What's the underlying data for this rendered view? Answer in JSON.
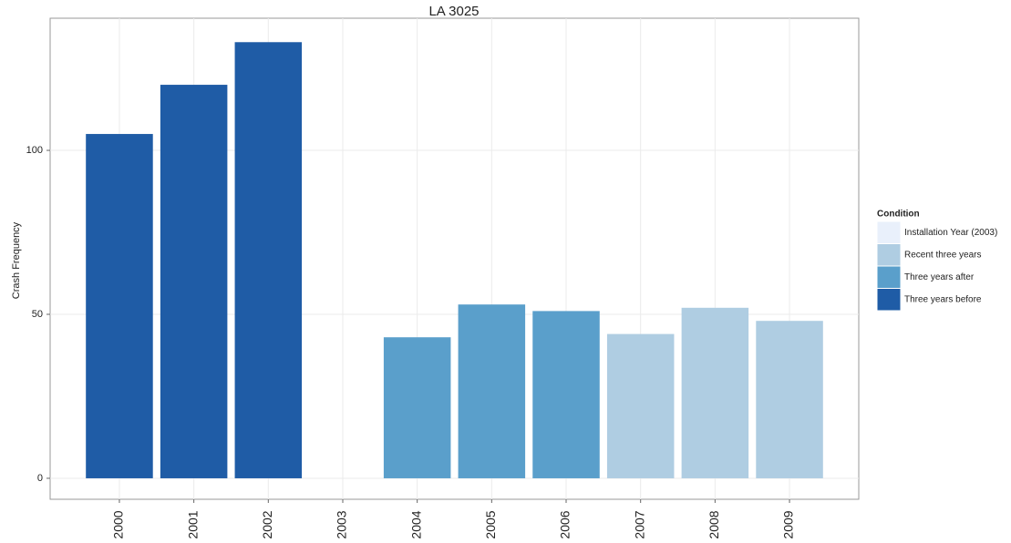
{
  "chart_data": {
    "type": "bar",
    "title": "LA 3025",
    "y_label": "Crash Frequency",
    "categories": [
      "2000",
      "2001",
      "2002",
      "2003",
      "2004",
      "2005",
      "2006",
      "2007",
      "2008",
      "2009"
    ],
    "values": [
      105,
      120,
      133,
      0,
      43,
      53,
      51,
      44,
      52,
      48
    ],
    "colors": [
      "#1f5ca6",
      "#1f5ca6",
      "#1f5ca6",
      "#e9f0fb",
      "#5a9fcb",
      "#5a9fcb",
      "#5a9fcb",
      "#afcde2",
      "#afcde2",
      "#afcde2"
    ],
    "ylim": [
      -6.4,
      140.3
    ],
    "yticks": [
      0,
      50,
      100
    ],
    "grid": true,
    "legend": {
      "title": "Condition",
      "position": "right",
      "items": [
        {
          "name": "Installation Year (2003)",
          "color": "#e9f0fb"
        },
        {
          "name": "Recent three years",
          "color": "#afcde2"
        },
        {
          "name": "Three years after",
          "color": "#5a9fcb"
        },
        {
          "name": "Three years before",
          "color": "#1f5ca6"
        }
      ]
    }
  }
}
